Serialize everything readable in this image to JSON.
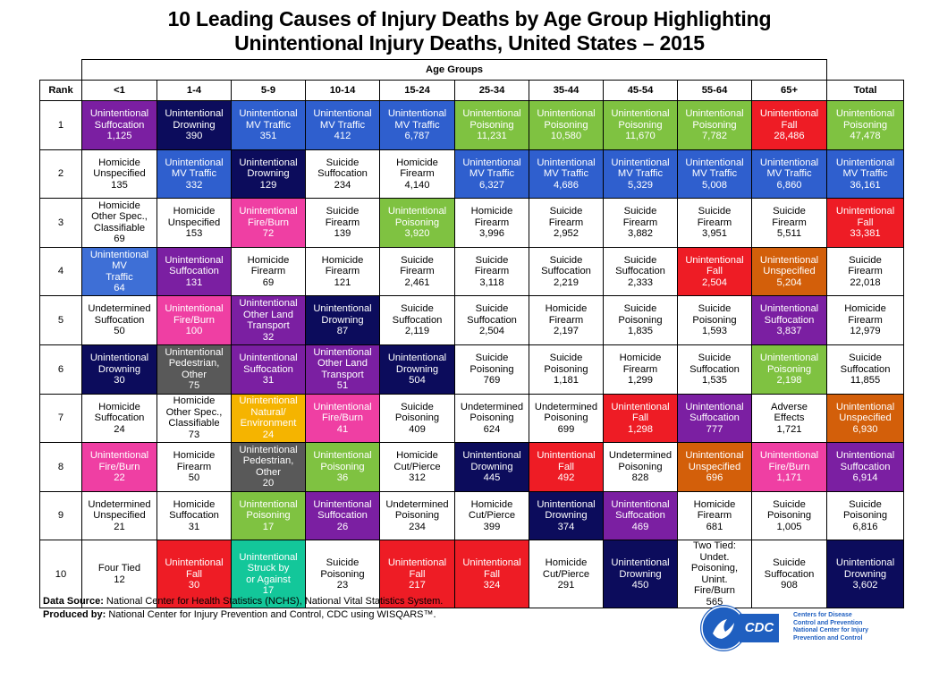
{
  "title": {
    "line1": "10 Leading Causes of Injury Deaths by Age Group Highlighting",
    "line2": "Unintentional Injury Deaths, United States – 2015"
  },
  "table": {
    "age_groups_label": "Age Groups",
    "rank_header": "Rank",
    "columns": [
      "<1",
      "1-4",
      "5-9",
      "10-14",
      "15-24",
      "25-34",
      "35-44",
      "45-54",
      "55-64",
      "65+",
      "Total"
    ],
    "colors": {
      "suffocation": "#7b1fa2",
      "drowning": "#0c0c5c",
      "mvtraffic": "#2f5fce",
      "poisoning": "#7fc241",
      "fall": "#ee1c25",
      "fireburn": "#ef3fa3",
      "pedestrian": "#595959",
      "otherland": "#7b1fa2",
      "natural": "#f5b400",
      "unspecified": "#d35f0a",
      "struck": "#13c79a",
      "mvtraffic_light": "#3e6fd6",
      "white": "#ffffff"
    },
    "rows": [
      {
        "rank": "1",
        "cells": [
          {
            "l1": "Unintentional",
            "l2": "Suffocation",
            "n": "1,125",
            "c": "suffocation"
          },
          {
            "l1": "Unintentional",
            "l2": "Drowning",
            "n": "390",
            "c": "drowning"
          },
          {
            "l1": "Unintentional",
            "l2": "MV Traffic",
            "n": "351",
            "c": "mvtraffic"
          },
          {
            "l1": "Unintentional",
            "l2": "MV Traffic",
            "n": "412",
            "c": "mvtraffic"
          },
          {
            "l1": "Unintentional",
            "l2": "MV Traffic",
            "n": "6,787",
            "c": "mvtraffic"
          },
          {
            "l1": "Unintentional",
            "l2": "Poisoning",
            "n": "11,231",
            "c": "poisoning"
          },
          {
            "l1": "Unintentional",
            "l2": "Poisoning",
            "n": "10,580",
            "c": "poisoning"
          },
          {
            "l1": "Unintentional",
            "l2": "Poisoning",
            "n": "11,670",
            "c": "poisoning"
          },
          {
            "l1": "Unintentional",
            "l2": "Poisoning",
            "n": "7,782",
            "c": "poisoning"
          },
          {
            "l1": "Unintentional",
            "l2": "Fall",
            "n": "28,486",
            "c": "fall"
          },
          {
            "l1": "Unintentional",
            "l2": "Poisoning",
            "n": "47,478",
            "c": "poisoning"
          }
        ]
      },
      {
        "rank": "2",
        "cells": [
          {
            "l1": "Homicide",
            "l2": "Unspecified",
            "n": "135",
            "c": "white"
          },
          {
            "l1": "Unintentional",
            "l2": "MV Traffic",
            "n": "332",
            "c": "mvtraffic"
          },
          {
            "l1": "Unintentional",
            "l2": "Drowning",
            "n": "129",
            "c": "drowning"
          },
          {
            "l1": "Suicide",
            "l2": "Suffocation",
            "n": "234",
            "c": "white"
          },
          {
            "l1": "Homicide",
            "l2": "Firearm",
            "n": "4,140",
            "c": "white"
          },
          {
            "l1": "Unintentional",
            "l2": "MV Traffic",
            "n": "6,327",
            "c": "mvtraffic"
          },
          {
            "l1": "Unintentional",
            "l2": "MV Traffic",
            "n": "4,686",
            "c": "mvtraffic"
          },
          {
            "l1": "Unintentional",
            "l2": "MV Traffic",
            "n": "5,329",
            "c": "mvtraffic"
          },
          {
            "l1": "Unintentional",
            "l2": "MV Traffic",
            "n": "5,008",
            "c": "mvtraffic"
          },
          {
            "l1": "Unintentional",
            "l2": "MV Traffic",
            "n": "6,860",
            "c": "mvtraffic"
          },
          {
            "l1": "Unintentional",
            "l2": "MV Traffic",
            "n": "36,161",
            "c": "mvtraffic"
          }
        ]
      },
      {
        "rank": "3",
        "cells": [
          {
            "l1": "Homicide",
            "l2": "Other Spec.,",
            "l3": "Classifiable",
            "n": "69",
            "c": "white"
          },
          {
            "l1": "Homicide",
            "l2": "Unspecified",
            "n": "153",
            "c": "white"
          },
          {
            "l1": "Unintentional",
            "l2": "Fire/Burn",
            "n": "72",
            "c": "fireburn"
          },
          {
            "l1": "Suicide",
            "l2": "Firearm",
            "n": "139",
            "c": "white"
          },
          {
            "l1": "Unintentional",
            "l2": "Poisoning",
            "n": "3,920",
            "c": "poisoning"
          },
          {
            "l1": "Homicide",
            "l2": "Firearm",
            "n": "3,996",
            "c": "white"
          },
          {
            "l1": "Suicide",
            "l2": "Firearm",
            "n": "2,952",
            "c": "white"
          },
          {
            "l1": "Suicide",
            "l2": "Firearm",
            "n": "3,882",
            "c": "white"
          },
          {
            "l1": "Suicide",
            "l2": "Firearm",
            "n": "3,951",
            "c": "white"
          },
          {
            "l1": "Suicide",
            "l2": "Firearm",
            "n": "5,511",
            "c": "white"
          },
          {
            "l1": "Unintentional",
            "l2": "Fall",
            "n": "33,381",
            "c": "fall"
          }
        ]
      },
      {
        "rank": "4",
        "cells": [
          {
            "l1": "Unintentional MV",
            "l2": "Traffic",
            "n": "64",
            "c": "mvtraffic_light"
          },
          {
            "l1": "Unintentional",
            "l2": "Suffocation",
            "n": "131",
            "c": "suffocation"
          },
          {
            "l1": "Homicide",
            "l2": "Firearm",
            "n": "69",
            "c": "white"
          },
          {
            "l1": "Homicide",
            "l2": "Firearm",
            "n": "121",
            "c": "white"
          },
          {
            "l1": "Suicide",
            "l2": "Firearm",
            "n": "2,461",
            "c": "white"
          },
          {
            "l1": "Suicide",
            "l2": "Firearm",
            "n": "3,118",
            "c": "white"
          },
          {
            "l1": "Suicide",
            "l2": "Suffocation",
            "n": "2,219",
            "c": "white"
          },
          {
            "l1": "Suicide",
            "l2": "Suffocation",
            "n": "2,333",
            "c": "white"
          },
          {
            "l1": "Unintentional",
            "l2": "Fall",
            "n": "2,504",
            "c": "fall"
          },
          {
            "l1": "Unintentional",
            "l2": "Unspecified",
            "n": "5,204",
            "c": "unspecified"
          },
          {
            "l1": "Suicide",
            "l2": "Firearm",
            "n": "22,018",
            "c": "white"
          }
        ]
      },
      {
        "rank": "5",
        "cells": [
          {
            "l1": "Undetermined",
            "l2": "Suffocation",
            "n": "50",
            "c": "white"
          },
          {
            "l1": "Unintentional",
            "l2": "Fire/Burn",
            "n": "100",
            "c": "fireburn"
          },
          {
            "l1": "Unintentional",
            "l2": "Other Land",
            "l3": "Transport",
            "n": "32",
            "c": "otherland"
          },
          {
            "l1": "Unintentional",
            "l2": "Drowning",
            "n": "87",
            "c": "drowning"
          },
          {
            "l1": "Suicide",
            "l2": "Suffocation",
            "n": "2,119",
            "c": "white"
          },
          {
            "l1": "Suicide",
            "l2": "Suffocation",
            "n": "2,504",
            "c": "white"
          },
          {
            "l1": "Homicide",
            "l2": "Firearm",
            "n": "2,197",
            "c": "white"
          },
          {
            "l1": "Suicide",
            "l2": "Poisoning",
            "n": "1,835",
            "c": "white"
          },
          {
            "l1": "Suicide",
            "l2": "Poisoning",
            "n": "1,593",
            "c": "white"
          },
          {
            "l1": "Unintentional",
            "l2": "Suffocation",
            "n": "3,837",
            "c": "suffocation"
          },
          {
            "l1": "Homicide",
            "l2": "Firearm",
            "n": "12,979",
            "c": "white"
          }
        ]
      },
      {
        "rank": "6",
        "cells": [
          {
            "l1": "Unintentional",
            "l2": "Drowning",
            "n": "30",
            "c": "drowning"
          },
          {
            "l1": "Unintentional",
            "l2": "Pedestrian,",
            "l3": "Other",
            "n": "75",
            "c": "pedestrian"
          },
          {
            "l1": "Unintentional",
            "l2": "Suffocation",
            "n": "31",
            "c": "suffocation"
          },
          {
            "l1": "Unintentional",
            "l2": "Other Land",
            "l3": "Transport",
            "n": "51",
            "c": "otherland"
          },
          {
            "l1": "Unintentional",
            "l2": "Drowning",
            "n": "504",
            "c": "drowning"
          },
          {
            "l1": "Suicide",
            "l2": "Poisoning",
            "n": "769",
            "c": "white"
          },
          {
            "l1": "Suicide",
            "l2": "Poisoning",
            "n": "1,181",
            "c": "white"
          },
          {
            "l1": "Homicide",
            "l2": "Firearm",
            "n": "1,299",
            "c": "white"
          },
          {
            "l1": "Suicide",
            "l2": "Suffocation",
            "n": "1,535",
            "c": "white"
          },
          {
            "l1": "Unintentional",
            "l2": "Poisoning",
            "n": "2,198",
            "c": "poisoning"
          },
          {
            "l1": "Suicide",
            "l2": "Suffocation",
            "n": "11,855",
            "c": "white"
          }
        ]
      },
      {
        "rank": "7",
        "cells": [
          {
            "l1": "Homicide",
            "l2": "Suffocation",
            "n": "24",
            "c": "white"
          },
          {
            "l1": "Homicide",
            "l2": "Other Spec.,",
            "l3": "Classifiable",
            "n": "73",
            "c": "white"
          },
          {
            "l1": "Unintentional",
            "l2": "Natural/",
            "l3": "Environment",
            "n": "24",
            "c": "natural"
          },
          {
            "l1": "Unintentional",
            "l2": "Fire/Burn",
            "n": "41",
            "c": "fireburn"
          },
          {
            "l1": "Suicide",
            "l2": "Poisoning",
            "n": "409",
            "c": "white"
          },
          {
            "l1": "Undetermined",
            "l2": "Poisoning",
            "n": "624",
            "c": "white"
          },
          {
            "l1": "Undetermined",
            "l2": "Poisoning",
            "n": "699",
            "c": "white"
          },
          {
            "l1": "Unintentional",
            "l2": "Fall",
            "n": "1,298",
            "c": "fall"
          },
          {
            "l1": "Unintentional",
            "l2": "Suffocation",
            "n": "777",
            "c": "suffocation"
          },
          {
            "l1": "Adverse",
            "l2": "Effects",
            "n": "1,721",
            "c": "white"
          },
          {
            "l1": "Unintentional",
            "l2": "Unspecified",
            "n": "6,930",
            "c": "unspecified"
          }
        ]
      },
      {
        "rank": "8",
        "cells": [
          {
            "l1": "Unintentional",
            "l2": "Fire/Burn",
            "n": "22",
            "c": "fireburn"
          },
          {
            "l1": "Homicide",
            "l2": "Firearm",
            "n": "50",
            "c": "white"
          },
          {
            "l1": "Unintentional",
            "l2": "Pedestrian,",
            "l3": "Other",
            "n": "20",
            "c": "pedestrian"
          },
          {
            "l1": "Unintentional",
            "l2": "Poisoning",
            "n": "36",
            "c": "poisoning"
          },
          {
            "l1": "Homicide",
            "l2": "Cut/Pierce",
            "n": "312",
            "c": "white"
          },
          {
            "l1": "Unintentional",
            "l2": "Drowning",
            "n": "445",
            "c": "drowning"
          },
          {
            "l1": "Unintentional",
            "l2": "Fall",
            "n": "492",
            "c": "fall"
          },
          {
            "l1": "Undetermined",
            "l2": "Poisoning",
            "n": "828",
            "c": "white"
          },
          {
            "l1": "Unintentional",
            "l2": "Unspecified",
            "n": "696",
            "c": "unspecified"
          },
          {
            "l1": "Unintentional",
            "l2": "Fire/Burn",
            "n": "1,171",
            "c": "fireburn"
          },
          {
            "l1": "Unintentional",
            "l2": "Suffocation",
            "n": "6,914",
            "c": "suffocation"
          }
        ]
      },
      {
        "rank": "9",
        "cells": [
          {
            "l1": "Undetermined",
            "l2": "Unspecified",
            "n": "21",
            "c": "white"
          },
          {
            "l1": "Homicide",
            "l2": "Suffocation",
            "n": "31",
            "c": "white"
          },
          {
            "l1": "Unintentional",
            "l2": "Poisoning",
            "n": "17",
            "c": "poisoning"
          },
          {
            "l1": "Unintentional",
            "l2": "Suffocation",
            "n": "26",
            "c": "suffocation"
          },
          {
            "l1": "Undetermined",
            "l2": "Poisoning",
            "n": "234",
            "c": "white"
          },
          {
            "l1": "Homicide",
            "l2": "Cut/Pierce",
            "n": "399",
            "c": "white"
          },
          {
            "l1": "Unintentional",
            "l2": "Drowning",
            "n": "374",
            "c": "drowning"
          },
          {
            "l1": "Unintentional",
            "l2": "Suffocation",
            "n": "469",
            "c": "suffocation"
          },
          {
            "l1": "Homicide",
            "l2": "Firearm",
            "n": "681",
            "c": "white"
          },
          {
            "l1": "Suicide",
            "l2": "Poisoning",
            "n": "1,005",
            "c": "white"
          },
          {
            "l1": "Suicide",
            "l2": "Poisoning",
            "n": "6,816",
            "c": "white"
          }
        ]
      },
      {
        "rank": "10",
        "cells": [
          {
            "l1": "Four Tied",
            "n": "12",
            "c": "white"
          },
          {
            "l1": "Unintentional",
            "l2": "Fall",
            "n": "30",
            "c": "fall"
          },
          {
            "l1": "Unintentional",
            "l2": "Struck by",
            "l3": "or Against",
            "n": "17",
            "c": "struck"
          },
          {
            "l1": "Suicide",
            "l2": "Poisoning",
            "n": "23",
            "c": "white"
          },
          {
            "l1": "Unintentional",
            "l2": "Fall",
            "n": "217",
            "c": "fall"
          },
          {
            "l1": "Unintentional",
            "l2": "Fall",
            "n": "324",
            "c": "fall"
          },
          {
            "l1": "Homicide",
            "l2": "Cut/Pierce",
            "n": "291",
            "c": "white"
          },
          {
            "l1": "Unintentional",
            "l2": "Drowning",
            "n": "450",
            "c": "drowning"
          },
          {
            "l1": "Two Tied: Undet.",
            "l2": "Poisoning, Unint.",
            "l3": "Fire/Burn",
            "n": "565",
            "c": "white"
          },
          {
            "l1": "Suicide",
            "l2": "Suffocation",
            "n": "908",
            "c": "white"
          },
          {
            "l1": "Unintentional",
            "l2": "Drowning",
            "n": "3,602",
            "c": "drowning"
          }
        ]
      }
    ]
  },
  "footer": {
    "source_label": "Data Source:",
    "source_text": " National Center for Health Statistics (NCHS), National Vital Statistics System.",
    "produced_label": "Produced by:",
    "produced_text": "  National Center for Injury Prevention and Control, CDC using WISQARS™."
  },
  "logo": {
    "box_text": "CDC",
    "line1": "Centers for Disease",
    "line2": "Control and Prevention",
    "line3": "National Center for Injury",
    "line4": "Prevention and Control"
  }
}
